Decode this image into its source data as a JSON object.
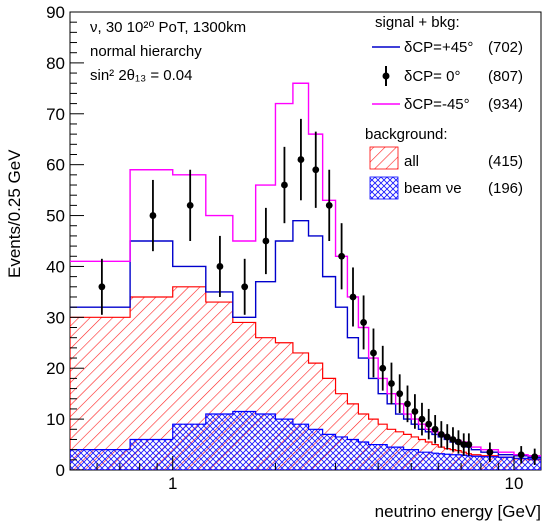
{
  "chart_data": {
    "type": "line",
    "xlabel": "neutrino energy [GeV]",
    "ylabel": "Events/0.25 GeV",
    "xscale": "log",
    "xlim": [
      0.5,
      12
    ],
    "ylim": [
      0,
      90
    ],
    "xticks": [
      1,
      10
    ],
    "xtick_labels": [
      "1",
      "10"
    ],
    "yticks": [
      0,
      10,
      20,
      30,
      40,
      50,
      60,
      70,
      80,
      90
    ],
    "ytick_labels": [
      "0",
      "10",
      "20",
      "30",
      "40",
      "50",
      "60",
      "70",
      "80",
      "90"
    ],
    "annotations": {
      "line1": "ν,  30 10²⁰ PoT, 1300km",
      "line2": "normal hierarchy",
      "line3": "sin² 2θ₁₃ = 0.04"
    },
    "legend": {
      "placement": "top-right",
      "header_signal": "signal + bkg:",
      "header_background": "background:",
      "entries": [
        {
          "label": "δCP=+45°",
          "count": "(702)"
        },
        {
          "label": "δCP= 0°",
          "count": "(807)"
        },
        {
          "label": "δCP=-45°",
          "count": "(934)"
        },
        {
          "label": "all",
          "count": "(415)"
        },
        {
          "label": "beam νe",
          "count": "(196)"
        }
      ]
    },
    "bin_edges": [
      0.5,
      0.75,
      1.0,
      1.25,
      1.5,
      1.75,
      2.0,
      2.25,
      2.5,
      2.75,
      3.0,
      3.25,
      3.5,
      3.75,
      4.0,
      4.25,
      4.5,
      4.75,
      5.0,
      5.25,
      5.5,
      5.75,
      6.0,
      6.25,
      6.5,
      6.75,
      7.0,
      7.25,
      7.5,
      8.0,
      9.0,
      10.0,
      11.0,
      12.0
    ],
    "series": [
      {
        "name": "δCP=+45°",
        "color": "#0000cc",
        "style": "histogram",
        "values": [
          32,
          45,
          40,
          35,
          30,
          37,
          45,
          49,
          46,
          38,
          32,
          26,
          22,
          18,
          15,
          13,
          11,
          10,
          9,
          8,
          7.5,
          7,
          6.5,
          6,
          5.5,
          5.2,
          5,
          4.5,
          4,
          3.5,
          3,
          2.8,
          2.5
        ]
      },
      {
        "name": "δCP=-45°",
        "color": "#ff00ff",
        "style": "histogram",
        "values": [
          41,
          59,
          58,
          50,
          45,
          56,
          72,
          76,
          66,
          53,
          42,
          34,
          28,
          22,
          18,
          15,
          13,
          11,
          10,
          9,
          8,
          7.5,
          7,
          6.5,
          6,
          5.8,
          5.5,
          5,
          4.5,
          4,
          3.5,
          3,
          2.8
        ]
      },
      {
        "name": "δCP= 0°",
        "color": "#000000",
        "style": "points",
        "x": [
          0.62,
          0.875,
          1.125,
          1.375,
          1.625,
          1.875,
          2.125,
          2.375,
          2.625,
          2.875,
          3.125,
          3.375,
          3.625,
          3.875,
          4.125,
          4.375,
          4.625,
          4.875,
          5.125,
          5.375,
          5.625,
          5.875,
          6.125,
          6.375,
          6.625,
          6.875,
          7.125,
          7.375,
          8.5,
          10.5,
          11.5
        ],
        "values": [
          36,
          50,
          52,
          40,
          36,
          45,
          56,
          61,
          59,
          52,
          42,
          34,
          29,
          23,
          20,
          17,
          15,
          13,
          11.5,
          10,
          9,
          8,
          7,
          6.5,
          6,
          5.5,
          5,
          5,
          3.5,
          3,
          2.6
        ],
        "errors": [
          5.5,
          7,
          7,
          6,
          5.5,
          6.5,
          7.5,
          8,
          7.5,
          7,
          6.5,
          5.8,
          5.3,
          4.8,
          4.4,
          4.1,
          3.8,
          3.6,
          3.4,
          3.2,
          3.0,
          2.8,
          2.6,
          2.5,
          2.4,
          2.3,
          2.2,
          2.2,
          1.9,
          1.7,
          1.6
        ]
      },
      {
        "name": "all",
        "color": "#ff0000",
        "style": "hatched-fill",
        "values": [
          30,
          34,
          36,
          33,
          29,
          26,
          25,
          23,
          21,
          18,
          15,
          13,
          11,
          10,
          9,
          8,
          7.5,
          7,
          6.5,
          6,
          5.5,
          5,
          4.5,
          4.2,
          4,
          3.8,
          3.5,
          3.2,
          3,
          2.8,
          2.5,
          2.2,
          2
        ]
      },
      {
        "name": "beam νe",
        "color": "#0000ff",
        "style": "crosshatch-fill",
        "values": [
          4,
          6,
          9,
          11,
          11.5,
          11,
          10,
          9,
          8,
          7,
          6.5,
          6,
          5.5,
          5,
          5,
          4.5,
          4.5,
          4,
          4,
          3.5,
          3.5,
          3.3,
          3.2,
          3.1,
          3.0,
          3.0,
          2.9,
          2.8,
          2.7,
          2.6,
          2.5,
          2.3,
          2.2
        ]
      }
    ]
  }
}
